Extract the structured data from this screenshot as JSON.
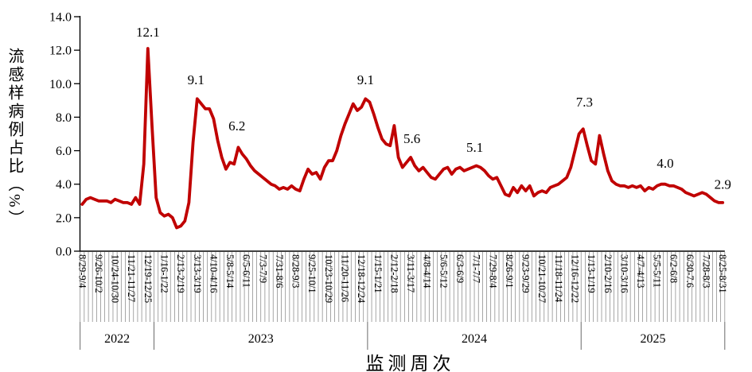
{
  "page": {
    "background": "#ffffff"
  },
  "chart_data": {
    "type": "line",
    "title": "",
    "xlabel": "监测周次",
    "ylabel": "流感样病例占比（%）",
    "ylim": [
      0,
      14
    ],
    "ytick_step": 2,
    "ytick_labels": [
      "0.0",
      "2.0",
      "4.0",
      "6.0",
      "8.0",
      "10.0",
      "12.0",
      "14.0"
    ],
    "grid": "none",
    "legend": "none",
    "line_color": "#C00000",
    "n_weeks": 157,
    "x_tick_every": 4,
    "x_tick_labels": [
      "8/29-9/4",
      "9/26-10/2",
      "10/24-10/30",
      "11/21-11/27",
      "12/19-12/25",
      "1/16-1/22",
      "2/13-2/19",
      "3/13-3/19",
      "4/10-4/16",
      "5/8-5/14",
      "6/5-6/11",
      "7/3-7/9",
      "7/31-8/6",
      "8/28-9/3",
      "9/25-10/1",
      "10/23-10/29",
      "11/20-11/26",
      "12/18-12/24",
      "1/15-1/21",
      "2/12-2/18",
      "3/11-3/17",
      "4/8-4/14",
      "5/6-5/12",
      "6/3-6/9",
      "7/1-7/7",
      "7/29-8/4",
      "8/26-9/1",
      "9/23-9/29",
      "10/21-10/27",
      "11/18-11/24",
      "12/16-12/22",
      "1/13-1/19",
      "2/10-2/16",
      "3/10-3/16",
      "4/7-4/13",
      "5/5-5/11",
      "6/2-6/8",
      "6/30-7.6",
      "7/28-8/3",
      "8/25-8/31"
    ],
    "year_groups": [
      {
        "label": "2022",
        "start_week": 0,
        "end_week": 18
      },
      {
        "label": "2023",
        "start_week": 18,
        "end_week": 70
      },
      {
        "label": "2024",
        "start_week": 70,
        "end_week": 122
      },
      {
        "label": "2025",
        "start_week": 122,
        "end_week": 157
      }
    ],
    "series": [
      {
        "name": "流感样病例占比",
        "color": "#C00000",
        "values": [
          2.8,
          3.1,
          3.2,
          3.1,
          3.0,
          3.0,
          3.0,
          2.9,
          3.1,
          3.0,
          2.9,
          2.9,
          2.8,
          3.2,
          2.8,
          5.2,
          12.1,
          7.5,
          3.2,
          2.3,
          2.1,
          2.2,
          2.0,
          1.4,
          1.5,
          1.8,
          2.9,
          6.5,
          9.1,
          8.8,
          8.5,
          8.5,
          7.9,
          6.6,
          5.6,
          4.9,
          5.3,
          5.2,
          6.2,
          5.8,
          5.5,
          5.1,
          4.8,
          4.6,
          4.4,
          4.2,
          4.0,
          3.9,
          3.7,
          3.8,
          3.7,
          3.9,
          3.7,
          3.6,
          4.3,
          4.9,
          4.6,
          4.7,
          4.3,
          5.0,
          5.4,
          5.4,
          6.0,
          6.9,
          7.6,
          8.2,
          8.8,
          8.4,
          8.6,
          9.1,
          8.9,
          8.2,
          7.4,
          6.7,
          6.4,
          6.3,
          7.5,
          5.6,
          5.0,
          5.3,
          5.6,
          5.1,
          4.8,
          5.0,
          4.7,
          4.4,
          4.3,
          4.6,
          4.9,
          5.0,
          4.6,
          4.9,
          5.0,
          4.8,
          4.9,
          5.0,
          5.1,
          5.0,
          4.8,
          4.5,
          4.3,
          4.4,
          3.9,
          3.4,
          3.3,
          3.8,
          3.5,
          3.9,
          3.6,
          3.9,
          3.3,
          3.5,
          3.6,
          3.5,
          3.8,
          3.9,
          4.0,
          4.2,
          4.4,
          5.0,
          6.0,
          7.0,
          7.3,
          6.3,
          5.4,
          5.2,
          6.9,
          5.8,
          4.8,
          4.2,
          4.0,
          3.9,
          3.9,
          3.8,
          3.9,
          3.8,
          3.9,
          3.6,
          3.8,
          3.7,
          3.9,
          4.0,
          4.0,
          3.9,
          3.9,
          3.8,
          3.7,
          3.5,
          3.4,
          3.3,
          3.4,
          3.5,
          3.4,
          3.2,
          3.0,
          2.9,
          2.9
        ]
      }
    ],
    "annotations": [
      {
        "text": "12.1",
        "week": 16,
        "y": 13.1
      },
      {
        "text": "9.1",
        "week": 27.7,
        "y": 10.25
      },
      {
        "text": "6.2",
        "week": 37.7,
        "y": 7.5
      },
      {
        "text": "9.1",
        "week": 69,
        "y": 10.25
      },
      {
        "text": "5.6",
        "week": 80.3,
        "y": 6.74
      },
      {
        "text": "5.1",
        "week": 95.6,
        "y": 6.22
      },
      {
        "text": "7.3",
        "week": 122.3,
        "y": 8.92
      },
      {
        "text": "4.0",
        "week": 142,
        "y": 5.27
      },
      {
        "text": "2.9",
        "week": 156,
        "y": 4.0
      }
    ]
  }
}
